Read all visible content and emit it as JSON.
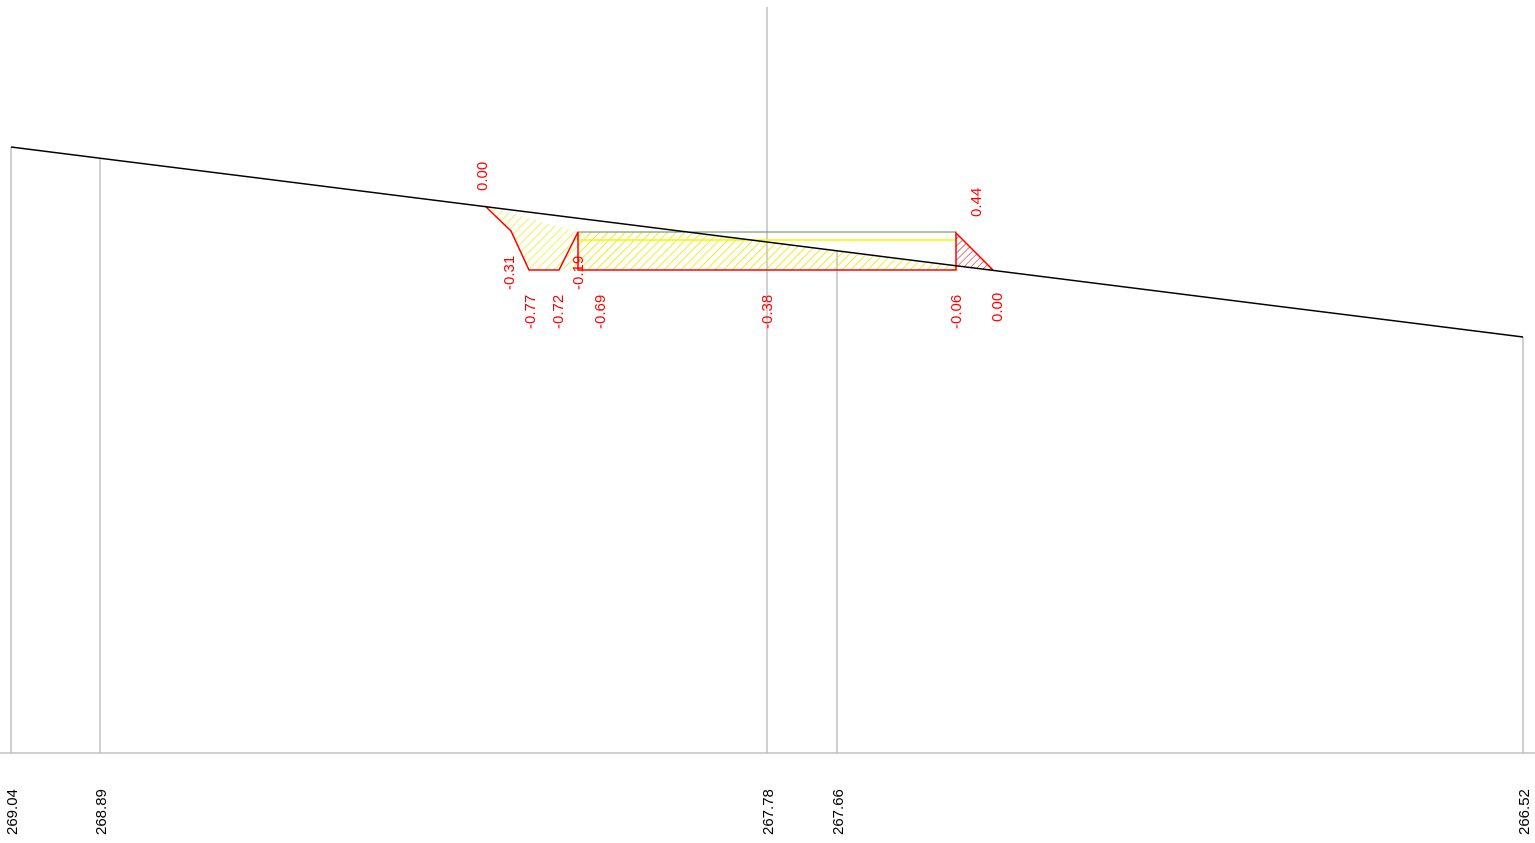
{
  "colors": {
    "ground_line": "#000000",
    "grid_line": "#c0c0c0",
    "design_outline": "#ff0000",
    "cut_fill": "#ffff00",
    "fill_hatch": "#cc0000",
    "pavement_top": "#7a9a6a",
    "pavement_inner": "#ffff00",
    "label": "#ff0000"
  },
  "ground_elevations": [
    "269.04",
    "268.89",
    "267.78",
    "267.66",
    "266.52"
  ],
  "offset_values": {
    "top_left": "0.00",
    "top_right": "0.44",
    "ditch_slope": "-0.31",
    "ditch_bottom_left": "-0.77",
    "ditch_bottom_right": "-0.72",
    "inner_slope": "-0.19",
    "edge_left": "-0.69",
    "center": "-0.38",
    "edge_right": "-0.06",
    "toe_right": "0.00"
  }
}
